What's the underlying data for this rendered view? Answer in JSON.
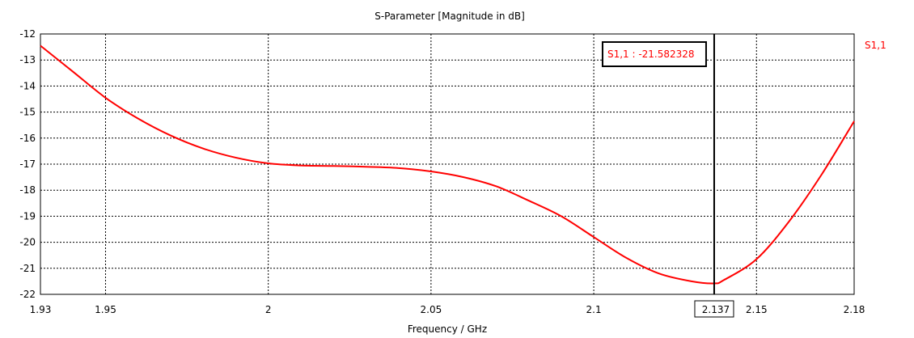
{
  "chart_data": {
    "type": "line",
    "title": "S-Parameter [Magnitude in dB]",
    "xlabel": "Frequency / GHz",
    "ylabel": "",
    "xlim": [
      1.93,
      2.18
    ],
    "ylim": [
      -22,
      -12
    ],
    "grid": true,
    "legend_placement": "top-right, outside plot",
    "x_ticks": [
      1.93,
      1.95,
      2.0,
      2.05,
      2.1,
      2.15,
      2.18
    ],
    "x_tick_labels": [
      "1.93",
      "1.95",
      "2",
      "2.05",
      "2.1",
      "2.15",
      "2.18"
    ],
    "y_ticks": [
      -12,
      -13,
      -14,
      -15,
      -16,
      -17,
      -18,
      -19,
      -20,
      -21,
      -22
    ],
    "y_tick_labels": [
      "-12",
      "-13",
      "-14",
      "-15",
      "-16",
      "-17",
      "-18",
      "-19",
      "-20",
      "-21",
      "-22"
    ],
    "series": [
      {
        "name": "S1,1",
        "color": "#ff0000",
        "x": [
          1.93,
          1.94,
          1.95,
          1.96,
          1.97,
          1.98,
          1.99,
          2.0,
          2.01,
          2.02,
          2.03,
          2.04,
          2.05,
          2.06,
          2.07,
          2.08,
          2.09,
          2.1,
          2.11,
          2.12,
          2.13,
          2.137,
          2.14,
          2.15,
          2.16,
          2.17,
          2.18
        ],
        "y": [
          -12.45,
          -13.45,
          -14.45,
          -15.25,
          -15.9,
          -16.4,
          -16.75,
          -16.97,
          -17.05,
          -17.07,
          -17.1,
          -17.15,
          -17.28,
          -17.5,
          -17.85,
          -18.4,
          -19.0,
          -19.8,
          -20.6,
          -21.2,
          -21.5,
          -21.58,
          -21.45,
          -20.65,
          -19.2,
          -17.4,
          -15.35
        ]
      }
    ],
    "marker": {
      "x": 2.137,
      "x_label": "2.137",
      "annotation": "S1,1 : -21.582328",
      "color": "#000000"
    },
    "legend": [
      {
        "label": "S1,1",
        "color": "#ff0000"
      }
    ]
  }
}
